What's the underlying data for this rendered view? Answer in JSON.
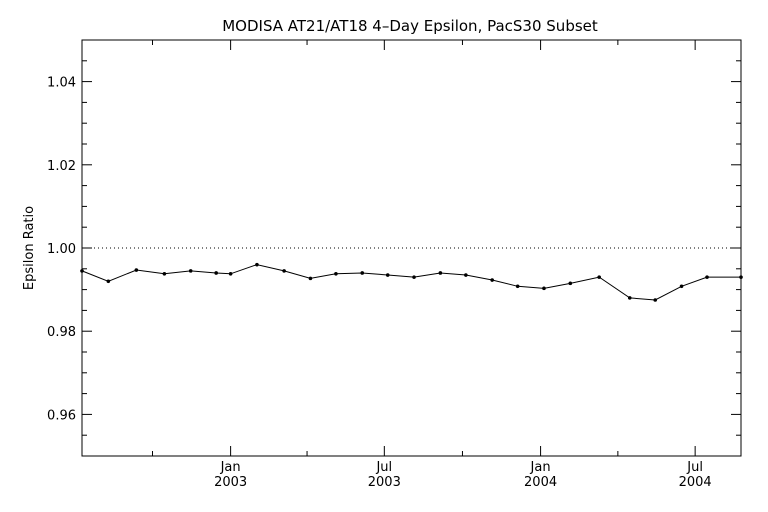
{
  "chart_data": {
    "type": "line",
    "title": "MODISA AT21/AT18 4–Day Epsilon, PacS30 Subset",
    "xlabel": "",
    "ylabel": "Epsilon Ratio",
    "x_axis": {
      "type": "date",
      "range": [
        "2002-07-10",
        "2004-08-24"
      ],
      "major_ticks": [
        {
          "date": "2003-01-01",
          "month": "Jan",
          "year": "2003"
        },
        {
          "date": "2003-07-01",
          "month": "Jul",
          "year": "2003"
        },
        {
          "date": "2004-01-01",
          "month": "Jan",
          "year": "2004"
        },
        {
          "date": "2004-07-01",
          "month": "Jul",
          "year": "2004"
        }
      ],
      "minor_ticks": [
        "2002-10-01",
        "2003-04-01",
        "2003-10-01",
        "2004-04-01"
      ]
    },
    "ylim": [
      0.95,
      1.05
    ],
    "y_ticks": [
      {
        "value": 0.96,
        "label": "0.96"
      },
      {
        "value": 0.98,
        "label": "0.98"
      },
      {
        "value": 1.0,
        "label": "1.00"
      },
      {
        "value": 1.02,
        "label": "1.02"
      },
      {
        "value": 1.04,
        "label": "1.04"
      }
    ],
    "y_minor_step": 0.005,
    "reference_line": {
      "value": 1.0,
      "style": "dotted"
    },
    "grid": false,
    "series": [
      {
        "x": [
          "2002-07-10",
          "2002-08-10",
          "2002-09-12",
          "2002-10-15",
          "2002-11-15",
          "2002-12-15",
          "2003-01-01",
          "2003-02-01",
          "2003-03-05",
          "2003-04-05",
          "2003-05-05",
          "2003-06-05",
          "2003-07-05",
          "2003-08-05",
          "2003-09-05",
          "2003-10-05",
          "2003-11-05",
          "2003-12-05",
          "2004-01-05",
          "2004-02-05",
          "2004-03-10",
          "2004-04-15",
          "2004-05-15",
          "2004-06-15",
          "2004-07-15",
          "2004-08-24"
        ],
        "y": [
          0.9945,
          0.992,
          0.9947,
          0.9938,
          0.9945,
          0.994,
          0.9938,
          0.996,
          0.9945,
          0.9927,
          0.9938,
          0.994,
          0.9935,
          0.993,
          0.994,
          0.9935,
          0.9923,
          0.9908,
          0.9903,
          0.9915,
          0.993,
          0.988,
          0.9875,
          0.9908,
          0.993,
          0.993
        ]
      }
    ]
  }
}
